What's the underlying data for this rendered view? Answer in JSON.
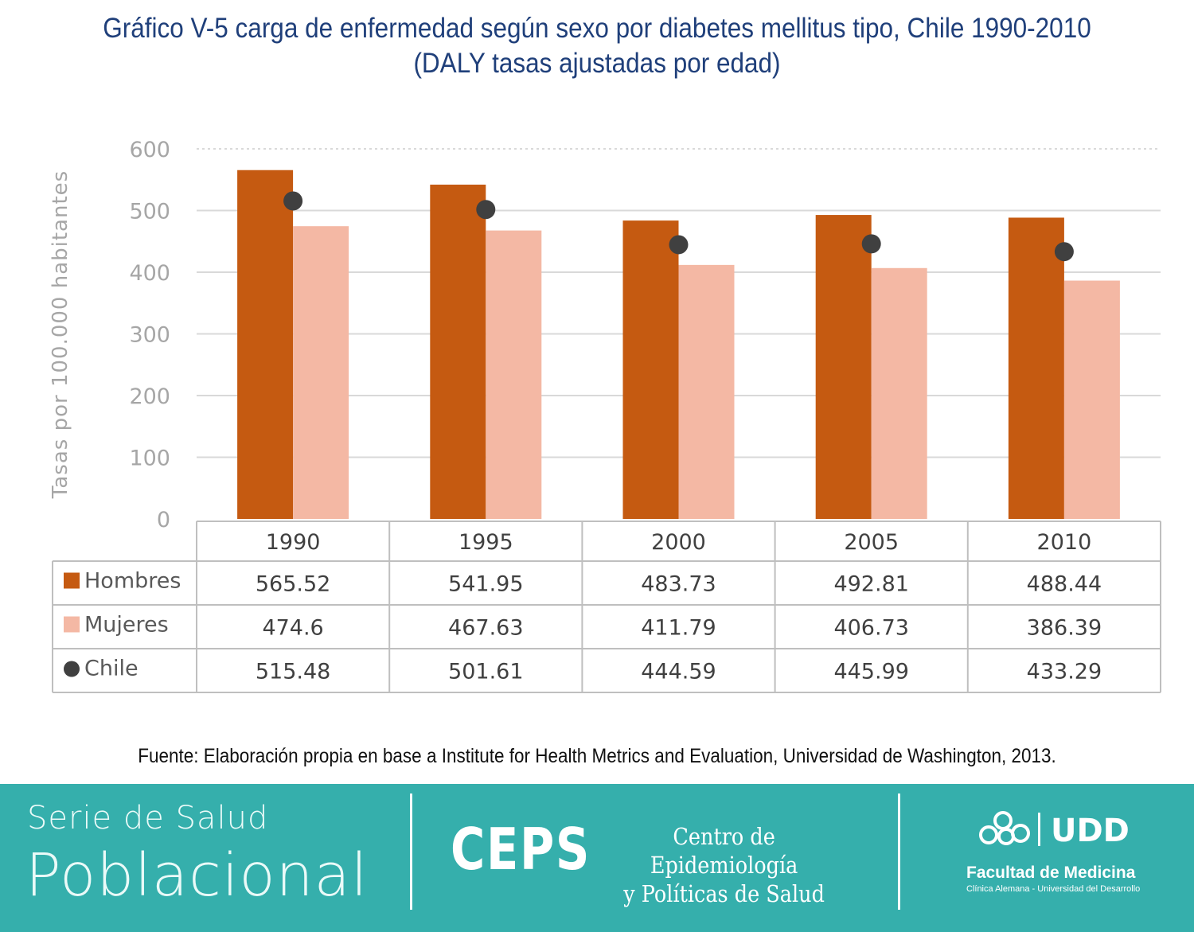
{
  "title_line1": "Gráfico V-5 carga de enfermedad según sexo por diabetes mellitus tipo, Chile 1990-2010",
  "title_line2": "(DALY tasas ajustadas por edad)",
  "chart_data": {
    "type": "bar",
    "ylabel": "Tasas por 100.000 habitantes",
    "ylim": [
      0,
      600
    ],
    "yticks": [
      0,
      100,
      200,
      300,
      400,
      500,
      600
    ],
    "grid": true,
    "legend": "data-table",
    "categories": [
      "1990",
      "1995",
      "2000",
      "2005",
      "2010"
    ],
    "series": [
      {
        "name": "Hombres",
        "type": "bar",
        "color": "#c55a11",
        "values": [
          565.52,
          541.95,
          483.73,
          492.81,
          488.44
        ],
        "labels": [
          "565.52",
          "541.95",
          "483.73",
          "492.81",
          "488.44"
        ]
      },
      {
        "name": "Mujeres",
        "type": "bar",
        "color": "#f4b8a4",
        "values": [
          474.6,
          467.63,
          411.79,
          406.73,
          386.39
        ],
        "labels": [
          "474.6",
          "467.63",
          "411.79",
          "406.73",
          "386.39"
        ]
      },
      {
        "name": "Chile",
        "type": "scatter",
        "color": "#404040",
        "values": [
          515.48,
          501.61,
          444.59,
          445.99,
          433.29
        ],
        "labels": [
          "515.48",
          "501.61",
          "444.59",
          "445.99",
          "433.29"
        ]
      }
    ]
  },
  "source": "Fuente: Elaboración propia en base a Institute for Health Metrics and Evaluation, Universidad de Washington, 2013.",
  "footer": {
    "serie_line1": "Serie de Salud",
    "serie_line2": "Poblacional",
    "ceps": "CEPS",
    "ceps_line1": "Centro de Epidemiología",
    "ceps_line2": "y Políticas de Salud",
    "udd": "UDD",
    "facultad": "Facultad de Medicina",
    "facultad_sub": "Clínica Alemana - Universidad del Desarrollo",
    "background_color": "#35afac"
  }
}
